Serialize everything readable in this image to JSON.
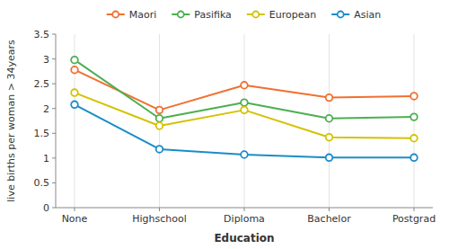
{
  "chart_data": {
    "type": "line",
    "categories": [
      "None",
      "Highschool",
      "Diploma",
      "Bachelor",
      "Postgrad"
    ],
    "series": [
      {
        "name": "Maori",
        "color": "#f07030",
        "values": [
          2.78,
          1.97,
          2.47,
          2.22,
          2.25
        ]
      },
      {
        "name": "Pasifika",
        "color": "#4caf50",
        "values": [
          2.98,
          1.8,
          2.12,
          1.8,
          1.83
        ]
      },
      {
        "name": "European",
        "color": "#d4c200",
        "values": [
          2.32,
          1.65,
          1.97,
          1.42,
          1.4
        ]
      },
      {
        "name": "Asian",
        "color": "#1a8dc8",
        "values": [
          2.08,
          1.18,
          1.07,
          1.01,
          1.01
        ]
      }
    ],
    "xlabel": "Education",
    "ylabel": "live births per woman > 34years",
    "ylim": [
      0,
      3.5
    ],
    "yticks": [
      0,
      0.5,
      1.0,
      1.5,
      2.0,
      2.5,
      3.0,
      3.5
    ],
    "grid": true,
    "legend": "top",
    "marker": "circle"
  }
}
